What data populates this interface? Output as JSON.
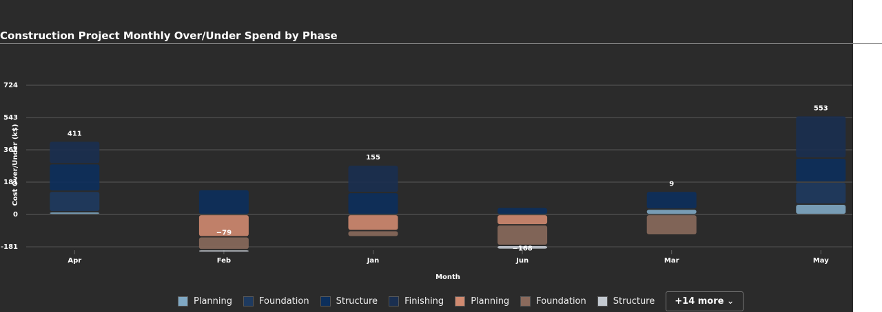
{
  "chart_data": {
    "type": "bar",
    "stacked": true,
    "title": "Construction Project Monthly Over/Under Spend by Phase",
    "x_label": "Month",
    "y_label": "Cost Over/Under (k$)",
    "categories": [
      "Apr",
      "Feb",
      "Jan",
      "Jun",
      "Mar",
      "May"
    ],
    "ylim": [
      -223,
      724
    ],
    "yticks": [
      -181,
      0,
      181,
      362,
      543,
      724
    ],
    "grid": true,
    "series": [
      {
        "name": "Planning",
        "color": "#7fa8c4",
        "values": [
          15,
          null,
          null,
          null,
          30,
          58
        ]
      },
      {
        "name": "Foundation",
        "color": "#1e3a5f",
        "values": [
          115,
          null,
          null,
          null,
          null,
          123
        ]
      },
      {
        "name": "Structure",
        "color": "#0c2f5c",
        "values": [
          154,
          140,
          123,
          40,
          100,
          135
        ]
      },
      {
        "name": "Finishing",
        "color": "#1a2f50",
        "values": [
          127,
          null,
          154,
          null,
          null,
          237
        ]
      },
      {
        "name": "Planning",
        "color": "#d08a70",
        "values": [
          null,
          -125,
          -90,
          -58,
          null,
          null
        ]
      },
      {
        "name": "Foundation",
        "color": "#8a6a5c",
        "values": [
          null,
          -72,
          -35,
          -115,
          -115,
          null
        ]
      },
      {
        "name": "Structure",
        "color": "#c3c9d0",
        "values": [
          null,
          -15,
          null,
          -22,
          null,
          null
        ]
      }
    ],
    "annotations": {
      "values": [
        411,
        -79,
        155,
        -168,
        9,
        553
      ],
      "value_labels": [
        "411",
        "−79",
        "155",
        "−168",
        "9",
        "553"
      ]
    },
    "legend_more": "+14 more"
  }
}
